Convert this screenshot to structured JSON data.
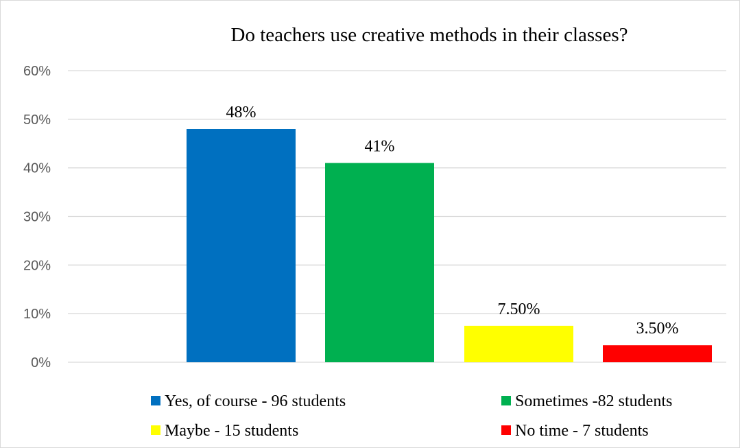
{
  "chart_data": {
    "type": "bar",
    "title": "Do teachers use creative methods in their classes?",
    "xlabel": "",
    "ylabel": "",
    "ylim": [
      0,
      60
    ],
    "yticks": [
      "0%",
      "10%",
      "20%",
      "30%",
      "40%",
      "50%",
      "60%"
    ],
    "grid": true,
    "legend_position": "bottom",
    "categories": [
      "Yes, of course - 96 students",
      "Sometimes -82 students",
      "Maybe - 15 students",
      "No time - 7 students"
    ],
    "values": [
      48,
      41,
      7.5,
      3.5
    ],
    "data_labels": [
      "48%",
      "41%",
      "7.50%",
      "3.50%"
    ],
    "colors": [
      "#0070c0",
      "#00b050",
      "#ffff00",
      "#ff0000"
    ],
    "legend": [
      "Yes, of course - 96 students",
      "Sometimes -82 students",
      "Maybe - 15 students",
      "No time - 7 students"
    ]
  }
}
